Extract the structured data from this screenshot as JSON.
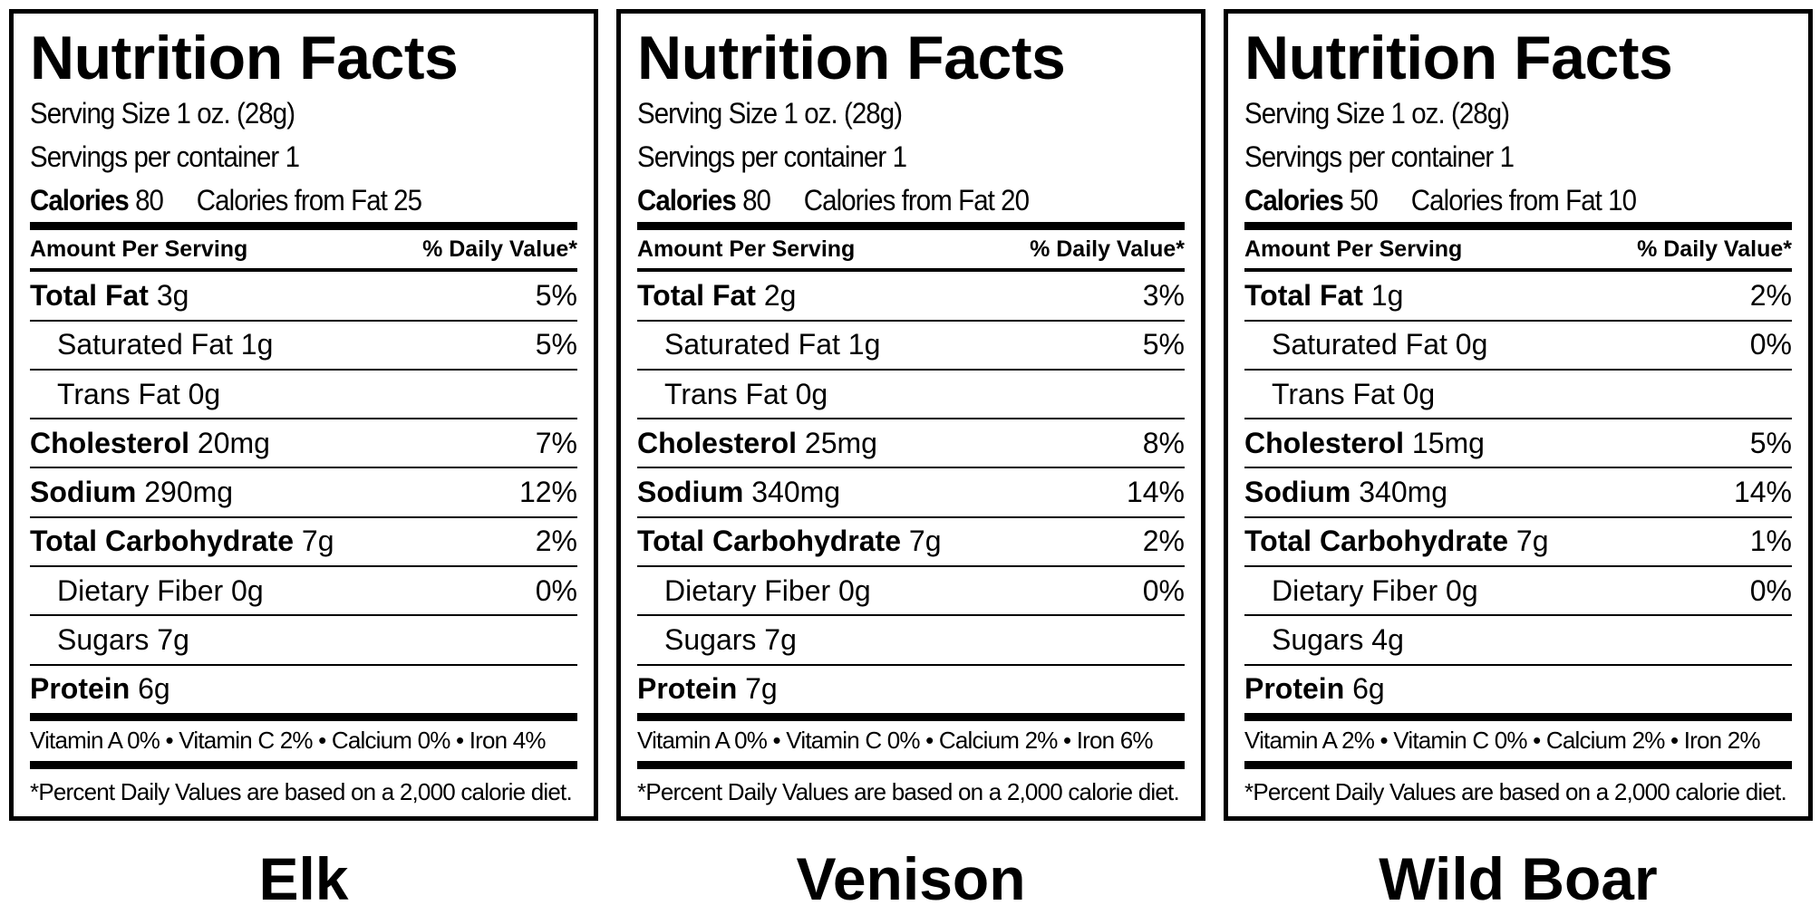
{
  "labels": [
    {
      "title": "Nutrition Facts",
      "serving_size": "Serving Size 1 oz. (28g)",
      "servings": "Servings per container 1",
      "calories_label": "Calories",
      "calories": "80",
      "calories_fat": "Calories from Fat 25",
      "header_left": "Amount Per Serving",
      "header_right": "% Daily Value*",
      "rows": [
        {
          "name": "Total Fat",
          "amount": "3g",
          "dv": "5%",
          "bold": true
        },
        {
          "name": "Saturated Fat",
          "amount": "1g",
          "dv": "5%",
          "bold": false
        },
        {
          "name": "Trans Fat",
          "amount": "0g",
          "bold": false
        },
        {
          "name": "Cholesterol",
          "amount": "20mg",
          "dv": "7%",
          "bold": true
        },
        {
          "name": "Sodium",
          "amount": "290mg",
          "dv": "12%",
          "bold": true
        },
        {
          "name": "Total Carbohydrate",
          "amount": "7g",
          "dv": "2%",
          "bold": true
        },
        {
          "name": "Dietary Fiber",
          "amount": "0g",
          "dv": "0%",
          "bold": false
        },
        {
          "name": "Sugars",
          "amount": "7g",
          "bold": false
        },
        {
          "name": "Protein",
          "amount": "6g",
          "bold": true
        }
      ],
      "vitamins": "Vitamin A 0% • Vitamin C 2% • Calcium 0% • Iron 4%",
      "footnote": "*Percent Daily Values are based on a 2,000 calorie diet.",
      "name": "Elk"
    },
    {
      "title": "Nutrition Facts",
      "serving_size": "Serving Size 1 oz. (28g)",
      "servings": "Servings per container 1",
      "calories_label": "Calories",
      "calories": "80",
      "calories_fat": "Calories from Fat 20",
      "header_left": "Amount Per Serving",
      "header_right": "% Daily Value*",
      "rows": [
        {
          "name": "Total Fat",
          "amount": "2g",
          "dv": "3%",
          "bold": true
        },
        {
          "name": "Saturated Fat",
          "amount": "1g",
          "dv": "5%",
          "bold": false
        },
        {
          "name": "Trans Fat",
          "amount": "0g",
          "bold": false
        },
        {
          "name": "Cholesterol",
          "amount": "25mg",
          "dv": "8%",
          "bold": true
        },
        {
          "name": "Sodium",
          "amount": "340mg",
          "dv": "14%",
          "bold": true
        },
        {
          "name": "Total Carbohydrate",
          "amount": "7g",
          "dv": "2%",
          "bold": true
        },
        {
          "name": "Dietary Fiber",
          "amount": "0g",
          "dv": "0%",
          "bold": false
        },
        {
          "name": "Sugars",
          "amount": "7g",
          "bold": false
        },
        {
          "name": "Protein",
          "amount": "7g",
          "bold": true
        }
      ],
      "vitamins": "Vitamin A 0% • Vitamin C 0% • Calcium 2% • Iron 6%",
      "footnote": "*Percent Daily Values are based on a 2,000 calorie diet.",
      "name": "Venison"
    },
    {
      "title": "Nutrition Facts",
      "serving_size": "Serving Size 1 oz. (28g)",
      "servings": "Servings per container 1",
      "calories_label": "Calories",
      "calories": "50",
      "calories_fat": "Calories from Fat 10",
      "header_left": "Amount Per Serving",
      "header_right": "% Daily Value*",
      "rows": [
        {
          "name": "Total Fat",
          "amount": "1g",
          "dv": "2%",
          "bold": true
        },
        {
          "name": "Saturated Fat",
          "amount": "0g",
          "dv": "0%",
          "bold": false
        },
        {
          "name": "Trans Fat",
          "amount": "0g",
          "bold": false
        },
        {
          "name": "Cholesterol",
          "amount": "15mg",
          "dv": "5%",
          "bold": true
        },
        {
          "name": "Sodium",
          "amount": "340mg",
          "dv": "14%",
          "bold": true
        },
        {
          "name": "Total Carbohydrate",
          "amount": "7g",
          "dv": "1%",
          "bold": true
        },
        {
          "name": "Dietary Fiber",
          "amount": "0g",
          "dv": "0%",
          "bold": false
        },
        {
          "name": "Sugars",
          "amount": "4g",
          "bold": false
        },
        {
          "name": "Protein",
          "amount": "6g",
          "bold": true
        }
      ],
      "vitamins": "Vitamin A 2% • Vitamin C 0% • Calcium 2% • Iron 2%",
      "footnote": "*Percent Daily Values are based on a 2,000 calorie diet.",
      "name": "Wild Boar"
    }
  ]
}
